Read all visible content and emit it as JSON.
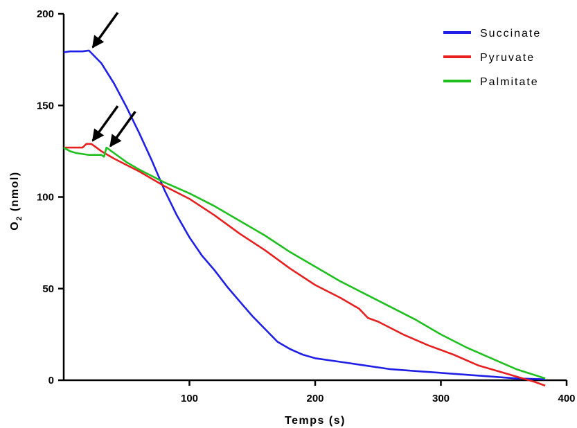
{
  "chart_data": {
    "type": "line",
    "xlabel": "Temps (s)",
    "ylabel_main": "O",
    "ylabel_sub": "2",
    "ylabel_unit": " (nmol)",
    "xlim": [
      0,
      400
    ],
    "ylim": [
      0,
      200
    ],
    "x_ticks": [
      100,
      200,
      300,
      400
    ],
    "y_ticks": [
      0,
      50,
      100,
      150,
      200
    ],
    "grid": false,
    "legend_position": "top-right",
    "series": [
      {
        "name": "Succinate",
        "color": "#1f1fe6",
        "x": [
          0,
          5,
          10,
          15,
          20,
          30,
          40,
          50,
          60,
          70,
          80,
          90,
          100,
          110,
          120,
          130,
          140,
          150,
          160,
          170,
          180,
          190,
          200,
          220,
          240,
          260,
          280,
          300,
          320,
          340,
          360,
          383
        ],
        "y": [
          179,
          179.5,
          179.5,
          179.5,
          180,
          173,
          162,
          149,
          135,
          120,
          104,
          90,
          78,
          68,
          60,
          51,
          43,
          35,
          28,
          21,
          17,
          14,
          12,
          10,
          8,
          6,
          5,
          4,
          3,
          2,
          1,
          0.5
        ]
      },
      {
        "name": "Pyruvate",
        "color": "#e61f1f",
        "x": [
          0,
          10,
          15,
          18,
          22,
          26,
          30,
          40,
          60,
          80,
          100,
          120,
          140,
          160,
          180,
          200,
          220,
          235,
          242,
          250,
          270,
          290,
          310,
          330,
          350,
          365,
          375,
          383
        ],
        "y": [
          127,
          127,
          127,
          129,
          129,
          127,
          125,
          121,
          114,
          106,
          99,
          90,
          80,
          71,
          61,
          52,
          45,
          39,
          34,
          32,
          25,
          19,
          14,
          8,
          4,
          1,
          -1,
          -3
        ]
      },
      {
        "name": "Palmitate",
        "color": "#1fbf1f",
        "x": [
          0,
          5,
          10,
          20,
          30,
          32,
          34,
          40,
          50,
          60,
          80,
          100,
          120,
          140,
          160,
          180,
          200,
          220,
          240,
          260,
          280,
          300,
          320,
          340,
          360,
          383
        ],
        "y": [
          127,
          125,
          124,
          123,
          123,
          122,
          127,
          124,
          119,
          115,
          108,
          102,
          95,
          87,
          79,
          70,
          62,
          54,
          47,
          40,
          33,
          25,
          18,
          12,
          6,
          1
        ]
      }
    ],
    "annotations": [
      {
        "type": "arrow",
        "target_x": 22,
        "target_y": 181
      },
      {
        "type": "arrow",
        "target_x": 22,
        "target_y": 130
      },
      {
        "type": "arrow",
        "target_x": 36,
        "target_y": 127
      }
    ]
  }
}
